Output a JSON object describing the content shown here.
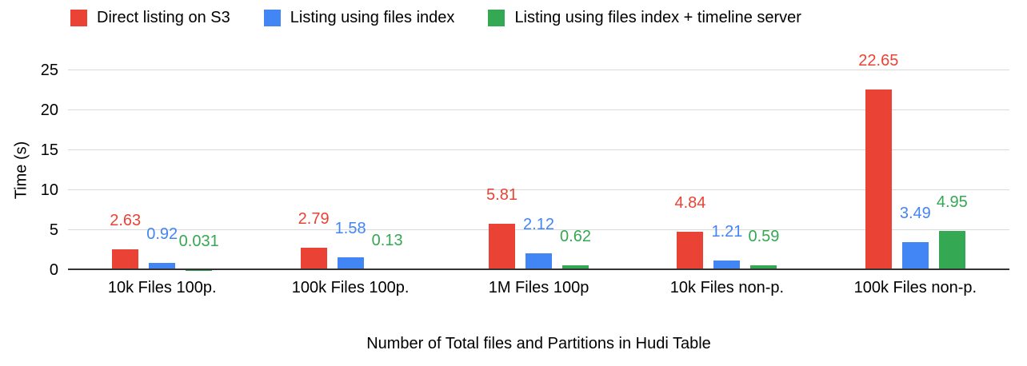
{
  "chart_data": {
    "type": "bar",
    "title": "",
    "xlabel": "Number of Total files and Partitions in Hudi Table",
    "ylabel": "Time (s)",
    "ylim": [
      0,
      25
    ],
    "ytick_step": 5,
    "yticks": [
      0,
      5,
      10,
      15,
      20,
      25
    ],
    "grid": true,
    "legend_position": "top",
    "categories": [
      "10k Files 100p.",
      "100k Files 100p.",
      "1M Files 100p",
      "10k Files non-p.",
      "100k Files non-p."
    ],
    "series": [
      {
        "name": "Direct listing on S3",
        "color": "#EA4335",
        "values": [
          2.63,
          2.79,
          5.81,
          4.84,
          22.65
        ]
      },
      {
        "name": "Listing using files index",
        "color": "#4285F4",
        "values": [
          0.92,
          1.58,
          2.12,
          1.21,
          3.49
        ]
      },
      {
        "name": "Listing using files index + timeline server",
        "color": "#34A853",
        "values": [
          0.031,
          0.13,
          0.62,
          0.59,
          4.95
        ]
      }
    ],
    "colors": {
      "gridline": "#dadada",
      "axis_line": "#333333",
      "text": "#000000"
    }
  }
}
